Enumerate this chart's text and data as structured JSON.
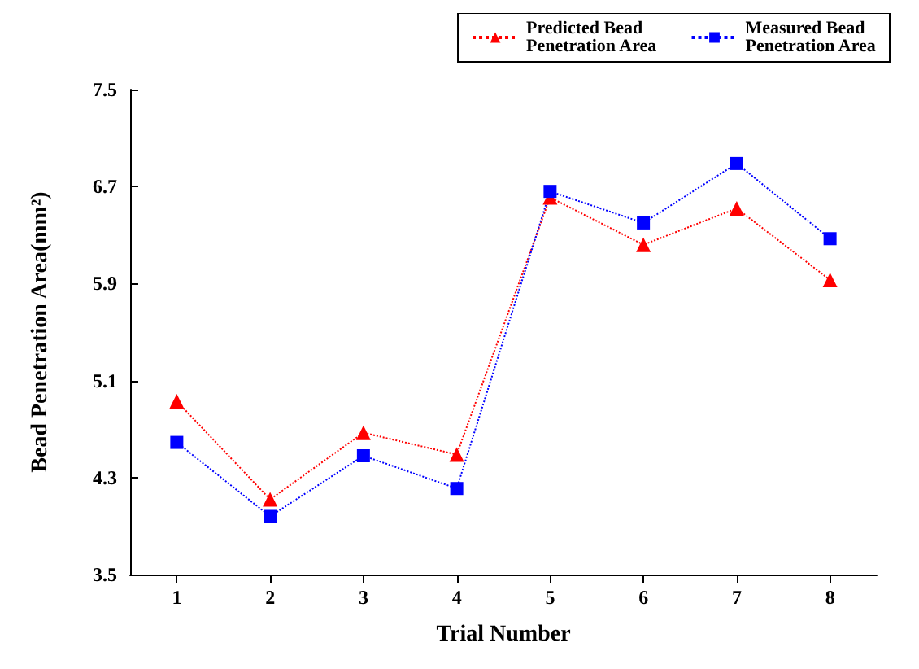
{
  "chart_data": {
    "type": "line",
    "xlabel": "Trial Number",
    "ylabel": "Bead Penetration Area(mm²)",
    "categories": [
      "1",
      "2",
      "3",
      "4",
      "5",
      "6",
      "7",
      "8"
    ],
    "series": [
      {
        "name": "Predicted Bead Penetration Area",
        "color": "#ff0000",
        "marker": "triangle",
        "values": [
          4.93,
          4.12,
          4.67,
          4.49,
          6.61,
          6.22,
          6.52,
          5.93
        ]
      },
      {
        "name": "Measured Bead Penetration Area",
        "color": "#0000ff",
        "marker": "square",
        "values": [
          4.59,
          3.98,
          4.48,
          4.21,
          6.66,
          6.4,
          6.89,
          6.27
        ]
      }
    ],
    "ylim": [
      3.5,
      7.5
    ],
    "yticks": [
      3.5,
      4.3,
      5.1,
      5.9,
      6.7,
      7.5
    ],
    "grid": false,
    "legend": "top right",
    "line_style": "dotted"
  }
}
